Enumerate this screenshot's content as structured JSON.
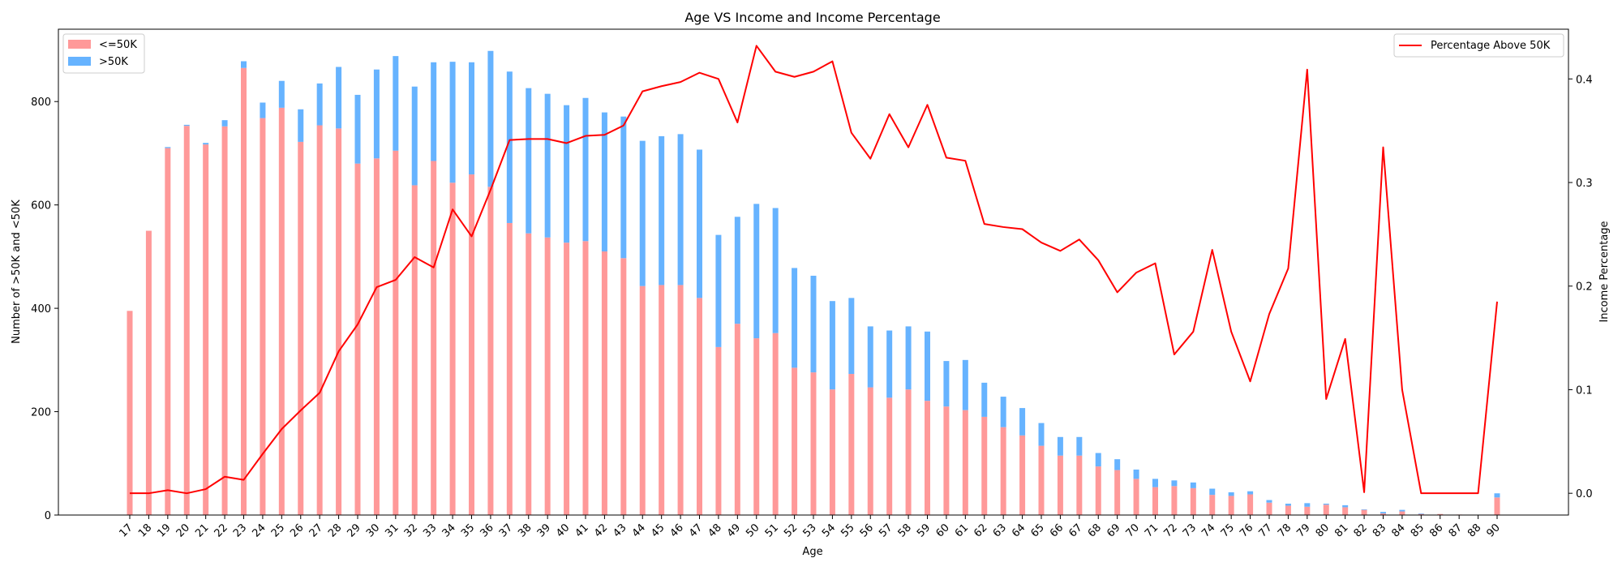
{
  "chart_data": {
    "type": "bar",
    "title": "Age VS Income and Income Percentage",
    "xlabel": "Age",
    "ylabel": "Number of >50K and <50K",
    "y2label": "Income Percentage",
    "ylim": [
      0,
      940
    ],
    "y2lim": [
      -0.021,
      0.448
    ],
    "yticks": [
      0,
      200,
      400,
      600,
      800
    ],
    "y2ticks": [
      "0.0",
      "0.1",
      "0.2",
      "0.3",
      "0.4"
    ],
    "categories": [
      "17",
      "18",
      "19",
      "20",
      "21",
      "22",
      "23",
      "24",
      "25",
      "26",
      "27",
      "28",
      "29",
      "30",
      "31",
      "32",
      "33",
      "34",
      "35",
      "36",
      "37",
      "38",
      "39",
      "40",
      "41",
      "42",
      "43",
      "44",
      "45",
      "46",
      "47",
      "48",
      "49",
      "50",
      "51",
      "52",
      "53",
      "54",
      "55",
      "56",
      "57",
      "58",
      "59",
      "60",
      "61",
      "62",
      "63",
      "64",
      "65",
      "66",
      "67",
      "68",
      "69",
      "70",
      "71",
      "72",
      "73",
      "74",
      "75",
      "76",
      "77",
      "78",
      "79",
      "80",
      "81",
      "82",
      "83",
      "84",
      "85",
      "86",
      "87",
      "88",
      "90"
    ],
    "series": [
      {
        "name": "<=50K",
        "color": "#ff9999",
        "values": [
          395,
          550,
          710,
          753,
          717,
          752,
          865,
          768,
          788,
          722,
          754,
          748,
          680,
          690,
          705,
          638,
          685,
          643,
          659,
          635,
          565,
          545,
          537,
          527,
          530,
          510,
          497,
          443,
          445,
          445,
          420,
          325,
          370,
          342,
          352,
          285,
          276,
          243,
          273,
          247,
          227,
          243,
          221,
          210,
          203,
          190,
          170,
          154,
          134,
          115,
          115,
          94,
          87,
          70,
          54,
          56,
          52,
          39,
          37,
          40,
          24,
          18,
          16,
          20,
          15,
          10,
          3,
          7,
          2,
          2,
          1,
          0,
          34
        ]
      },
      {
        "name": ">50K",
        "color": "#66b3ff",
        "values": [
          0,
          0,
          2,
          2,
          3,
          12,
          13,
          30,
          52,
          63,
          81,
          119,
          133,
          172,
          183,
          191,
          191,
          234,
          217,
          263,
          293,
          281,
          278,
          266,
          277,
          269,
          274,
          281,
          288,
          292,
          287,
          217,
          207,
          260,
          242,
          193,
          187,
          171,
          147,
          118,
          130,
          122,
          134,
          88,
          97,
          66,
          59,
          53,
          44,
          36,
          36,
          26,
          21,
          18,
          16,
          11,
          11,
          12,
          7,
          6,
          5,
          4,
          7,
          2,
          4,
          1,
          3,
          3,
          1,
          0,
          0,
          0,
          8
        ]
      }
    ],
    "line_series": {
      "name": "Percentage Above 50K",
      "color": "#ff0000",
      "values": [
        0.0,
        0.0,
        0.003,
        0.0,
        0.004,
        0.016,
        0.013,
        0.038,
        0.062,
        0.08,
        0.097,
        0.137,
        0.163,
        0.199,
        0.206,
        0.228,
        0.218,
        0.274,
        0.248,
        0.293,
        0.341,
        0.342,
        0.342,
        0.338,
        0.345,
        0.346,
        0.355,
        0.388,
        0.393,
        0.397,
        0.406,
        0.4,
        0.358,
        0.432,
        0.407,
        0.402,
        0.407,
        0.417,
        0.348,
        0.323,
        0.366,
        0.334,
        0.375,
        0.324,
        0.321,
        0.26,
        0.257,
        0.255,
        0.242,
        0.234,
        0.245,
        0.225,
        0.194,
        0.213,
        0.222,
        0.134,
        0.156,
        0.235,
        0.156,
        0.108,
        0.173,
        0.217,
        0.409,
        0.091,
        0.149,
        0.001,
        0.334,
        0.1,
        0.0,
        0.0,
        0.0,
        0.0,
        0.185
      ]
    },
    "legend_left": [
      "<=50K",
      ">50K"
    ],
    "legend_right": "Percentage Above 50K",
    "grid": false
  }
}
